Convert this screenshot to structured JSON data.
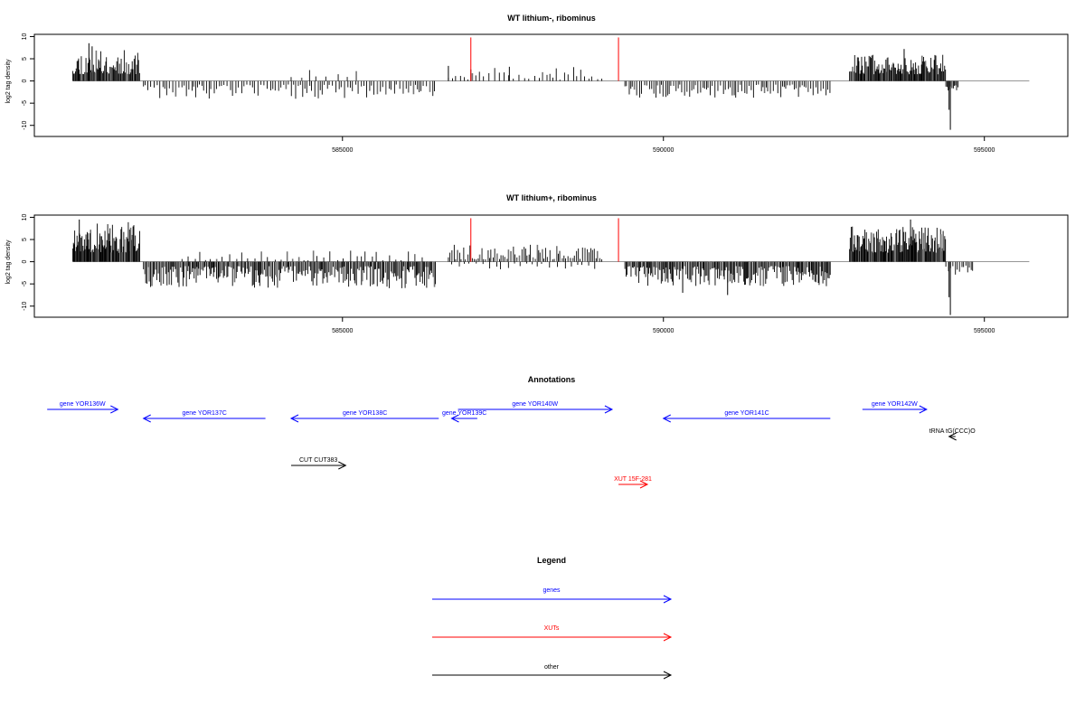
{
  "chart_data": [
    {
      "type": "bar",
      "title": "WT lithium-, ribominus",
      "ylabel": "log2 tag density",
      "xlabel": "",
      "xlim": [
        580200,
        596300
      ],
      "ylim": [
        -12.5,
        10.5
      ],
      "yticks": [
        10,
        5,
        0,
        -5,
        -10
      ],
      "xticks": [
        585000,
        590000,
        595000
      ],
      "baseline_range": [
        580800,
        595700
      ],
      "red_lines_x": [
        587000,
        589300
      ],
      "red_lines_top": 9.8,
      "grid": false,
      "segments": [
        {
          "from": 580800,
          "to": 581850,
          "sign": 1,
          "min": 1.5,
          "max": 7.0,
          "step": 14,
          "seed": 11
        },
        {
          "from": 581900,
          "to": 586450,
          "sign": -1,
          "min": 0.8,
          "max": 4.0,
          "step": 40,
          "seed": 12
        },
        {
          "from": 584200,
          "to": 585300,
          "sign": 1,
          "min": 0.6,
          "max": 2.6,
          "step": 140,
          "seed": 13
        },
        {
          "from": 586650,
          "to": 589050,
          "sign": 1,
          "min": 0.3,
          "max": 3.5,
          "step": 70,
          "seed": 14
        },
        {
          "from": 589400,
          "to": 592600,
          "sign": -1,
          "min": 0.8,
          "max": 3.8,
          "step": 35,
          "seed": 15
        },
        {
          "from": 592900,
          "to": 594400,
          "sign": 1,
          "min": 1.5,
          "max": 6.0,
          "step": 14,
          "seed": 16
        },
        {
          "from": 594400,
          "to": 594600,
          "sign": -1,
          "min": 1.0,
          "max": 3.0,
          "step": 20,
          "seed": 17
        }
      ],
      "spikes": [
        {
          "x": 581050,
          "v": 8.5
        },
        {
          "x": 581100,
          "v": 7.8
        },
        {
          "x": 586650,
          "v": 3.4
        },
        {
          "x": 587000,
          "v": 2.6
        },
        {
          "x": 587600,
          "v": 3.2
        },
        {
          "x": 593750,
          "v": 7.2
        },
        {
          "x": 594450,
          "v": -6.5
        },
        {
          "x": 594470,
          "v": -11.0
        }
      ]
    },
    {
      "type": "bar",
      "title": "WT lithium+, ribominus",
      "ylabel": "log2 tag density",
      "xlabel": "",
      "xlim": [
        580200,
        596300
      ],
      "ylim": [
        -12.5,
        10.5
      ],
      "yticks": [
        10,
        5,
        0,
        -5,
        -10
      ],
      "xticks": [
        585000,
        590000,
        595000
      ],
      "baseline_range": [
        580800,
        595700
      ],
      "red_lines_x": [
        587000,
        589300
      ],
      "red_lines_top": 9.8,
      "grid": false,
      "segments": [
        {
          "from": 580800,
          "to": 581850,
          "sign": 1,
          "min": 2.0,
          "max": 9.0,
          "step": 12,
          "seed": 21
        },
        {
          "from": 581900,
          "to": 586450,
          "sign": -1,
          "min": 1.0,
          "max": 6.0,
          "step": 18,
          "seed": 22
        },
        {
          "from": 582500,
          "to": 586300,
          "sign": 1,
          "min": 0.3,
          "max": 2.5,
          "step": 90,
          "seed": 23
        },
        {
          "from": 586650,
          "to": 589050,
          "sign": 1,
          "min": 0.5,
          "max": 4.0,
          "step": 30,
          "seed": 24
        },
        {
          "from": 586700,
          "to": 589000,
          "sign": -1,
          "min": 0.4,
          "max": 1.8,
          "step": 90,
          "seed": 25
        },
        {
          "from": 589400,
          "to": 592600,
          "sign": -1,
          "min": 1.0,
          "max": 5.5,
          "step": 18,
          "seed": 26
        },
        {
          "from": 592900,
          "to": 594400,
          "sign": 1,
          "min": 2.0,
          "max": 8.0,
          "step": 12,
          "seed": 27
        },
        {
          "from": 594400,
          "to": 594850,
          "sign": -1,
          "min": 0.8,
          "max": 3.0,
          "step": 30,
          "seed": 28
        }
      ],
      "spikes": [
        {
          "x": 580900,
          "v": 9.5
        },
        {
          "x": 590300,
          "v": -7.0
        },
        {
          "x": 591000,
          "v": -7.5
        },
        {
          "x": 593850,
          "v": 9.5
        },
        {
          "x": 594450,
          "v": -8.0
        },
        {
          "x": 594470,
          "v": -12.0
        }
      ]
    }
  ],
  "annotations": {
    "title": "Annotations",
    "xlim": [
      580200,
      596300
    ],
    "colors": {
      "gene": "#0000ff",
      "xut": "#ff0000",
      "other": "#000000"
    },
    "features": [
      {
        "label": "gene YOR136W",
        "type": "gene",
        "from": 580400,
        "to": 581500,
        "strand": "+",
        "row": 0
      },
      {
        "label": "gene YOR137C",
        "type": "gene",
        "from": 581900,
        "to": 583800,
        "strand": "-",
        "row": 1
      },
      {
        "label": "gene YOR138C",
        "type": "gene",
        "from": 584200,
        "to": 586500,
        "strand": "-",
        "row": 1
      },
      {
        "label": "gene YOR139C",
        "type": "gene",
        "from": 586700,
        "to": 587100,
        "strand": "-",
        "row": 1
      },
      {
        "label": "gene YOR140W",
        "type": "gene",
        "from": 586800,
        "to": 589200,
        "strand": "+",
        "row": 0
      },
      {
        "label": "gene YOR141C",
        "type": "gene",
        "from": 590000,
        "to": 592600,
        "strand": "-",
        "row": 1
      },
      {
        "label": "gene YOR142W",
        "type": "gene",
        "from": 593100,
        "to": 594100,
        "strand": "+",
        "row": 0
      },
      {
        "label": "tRNA tG(CCC)O",
        "type": "other",
        "from": 594450,
        "to": 594550,
        "strand": "-",
        "row": 2
      },
      {
        "label": "CUT CUT383",
        "type": "other",
        "from": 584200,
        "to": 585050,
        "strand": "+",
        "row": 3
      },
      {
        "label": "XUT 15F-281",
        "type": "xut",
        "from": 589300,
        "to": 589750,
        "strand": "+",
        "row": 4
      }
    ]
  },
  "legend": {
    "title": "Legend",
    "items": [
      {
        "label": "genes",
        "color": "#0000ff"
      },
      {
        "label": "XUTs",
        "color": "#ff0000"
      },
      {
        "label": "other",
        "color": "#000000"
      }
    ]
  }
}
